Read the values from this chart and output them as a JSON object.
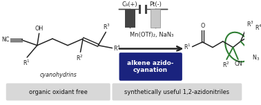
{
  "background_color": "#ffffff",
  "box_text": "alkene azido-\ncyanation",
  "box_color": "#1a237e",
  "box_text_color": "#ffffff",
  "electrode_text1": "C₉(+)",
  "electrode_text2": "Pt(-)",
  "reagents_text": "Mn(OTf)₂, NaN₃",
  "bottom_left_text": "organic oxidant free",
  "bottom_right_text": "synthetically useful 1,2-azidonitriles",
  "bottom_bg_color": "#d8d8d8",
  "green_color": "#2e7d32",
  "dark_color": "#222222",
  "line_color": "#222222",
  "lw": 1.1
}
